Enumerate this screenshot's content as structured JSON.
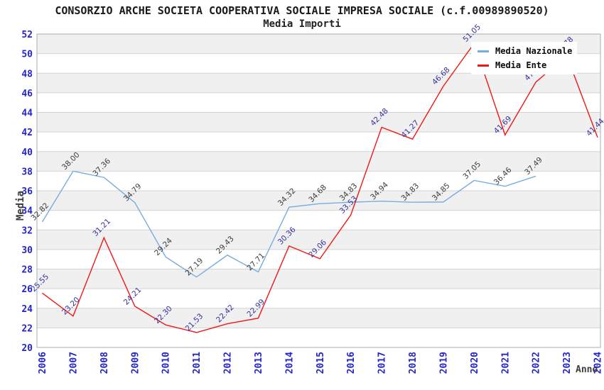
{
  "chart_data": {
    "type": "line",
    "title": "CONSORZIO ARCHE SOCIETA COOPERATIVA SOCIALE IMPRESA SOCIALE (c.f.00989890520)",
    "subtitle": "Media Importi",
    "xlabel": "Anno",
    "ylabel": "Media",
    "ylim": [
      20,
      52
    ],
    "ytick_step": 2,
    "grid": "horizontal",
    "legend_position": "top-right",
    "years": [
      2006,
      2007,
      2008,
      2009,
      2010,
      2011,
      2012,
      2013,
      2014,
      2015,
      2016,
      2017,
      2018,
      2019,
      2020,
      2021,
      2022,
      2023,
      2024
    ],
    "series": [
      {
        "name": "Media Nazionale",
        "color": "#76ace0",
        "label_color": "#3c3c3c",
        "values": [
          32.82,
          38.0,
          37.36,
          34.79,
          29.24,
          27.19,
          29.43,
          27.71,
          34.32,
          34.68,
          34.83,
          34.94,
          34.83,
          34.85,
          37.05,
          36.46,
          37.49
        ]
      },
      {
        "name": "Media Ente",
        "color": "#f21616",
        "label_color": "#32329e",
        "values": [
          25.55,
          23.2,
          31.21,
          24.21,
          22.3,
          21.53,
          22.42,
          22.99,
          30.36,
          29.06,
          33.53,
          42.48,
          41.27,
          46.68,
          51.05,
          41.69,
          47.1,
          49.78,
          41.44
        ]
      }
    ],
    "colors": {
      "tick_label": "#2424cf",
      "band": "#f0f0f0",
      "gridline": "#d4d4d4",
      "border": "#ababab",
      "title": "#1a1a1a",
      "axis_title": "#3d3d3d",
      "legend_bg": "#ffffff",
      "legend_text": "#0b0b0b"
    }
  }
}
